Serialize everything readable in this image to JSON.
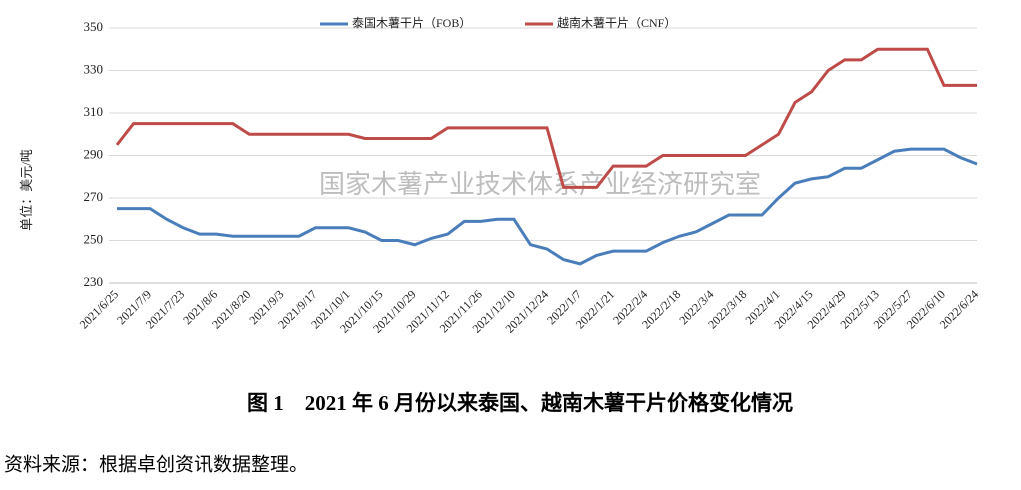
{
  "chart_data": {
    "type": "line",
    "legend": "top",
    "y_label": "单位：美元/吨",
    "watermark": "国家木薯产业技术体系产业经济研究室",
    "caption": "图 1　2021 年 6 月份以来泰国、越南木薯干片价格变化情况",
    "source": "资料来源：根据卓创资讯数据整理。",
    "categories": [
      "2021/6/25",
      null,
      "2021/7/9",
      null,
      "2021/7/23",
      null,
      "2021/8/6",
      null,
      "2021/8/20",
      null,
      "2021/9/3",
      null,
      "2021/9/17",
      null,
      "2021/10/1",
      null,
      "2021/10/15",
      null,
      "2021/10/29",
      null,
      "2021/11/12",
      null,
      "2021/11/26",
      null,
      "2021/12/10",
      null,
      "2021/12/24",
      null,
      "2022/1/7",
      null,
      "2022/1/21",
      null,
      "2022/2/4",
      null,
      "2022/2/18",
      null,
      "2022/3/4",
      null,
      "2022/3/18",
      null,
      "2022/4/1",
      null,
      "2022/4/15",
      null,
      "2022/4/29",
      null,
      "2022/5/13",
      null,
      "2022/5/27",
      null,
      "2022/6/10",
      null,
      "2022/6/24"
    ],
    "series": [
      {
        "name": "泰国木薯干片（FOB）",
        "color": "#4a7ebb",
        "values": [
          265,
          265,
          265,
          260,
          256,
          253,
          253,
          252,
          252,
          252,
          252,
          252,
          256,
          256,
          256,
          254,
          250,
          250,
          248,
          251,
          253,
          259,
          259,
          260,
          260,
          248,
          246,
          241,
          239,
          243,
          245,
          245,
          245,
          249,
          252,
          254,
          258,
          262,
          262,
          262,
          270,
          277,
          279,
          280,
          284,
          284,
          288,
          292,
          293,
          293,
          293,
          289,
          286
        ]
      },
      {
        "name": "越南木薯干片（CNF）",
        "color": "#be4b48",
        "values": [
          295,
          305,
          305,
          305,
          305,
          305,
          305,
          305,
          300,
          300,
          300,
          300,
          300,
          300,
          300,
          298,
          298,
          298,
          298,
          298,
          303,
          303,
          303,
          303,
          303,
          303,
          303,
          275,
          275,
          275,
          285,
          285,
          285,
          290,
          290,
          290,
          290,
          290,
          290,
          295,
          300,
          315,
          320,
          330,
          335,
          335,
          340,
          340,
          340,
          340,
          323,
          323,
          323
        ]
      }
    ],
    "ylim": [
      230,
      350
    ],
    "yticks": [
      230,
      250,
      270,
      290,
      310,
      330,
      350
    ],
    "grid": true
  }
}
